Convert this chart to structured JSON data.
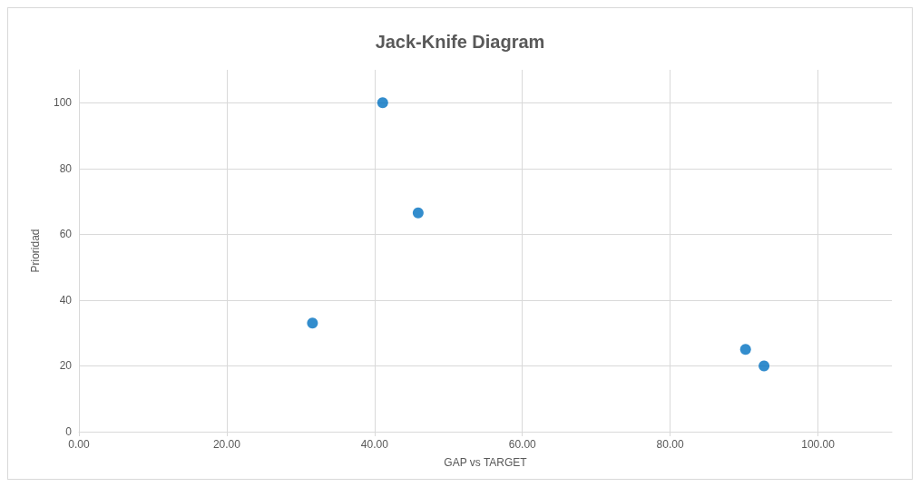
{
  "chart_data": {
    "type": "scatter",
    "title": "Jack-Knife Diagram",
    "xlabel": "GAP vs TARGET",
    "ylabel": "Prioridad",
    "x": [
      31.6,
      41.1,
      45.9,
      90.2,
      92.7
    ],
    "series": [
      {
        "color": "#0070c0",
        "values": [
          33,
          100,
          66.5,
          25,
          20
        ]
      }
    ],
    "xlim": [
      0,
      110
    ],
    "ylim": [
      0,
      110
    ],
    "xticks": [
      {
        "value": 0,
        "label": "0.00"
      },
      {
        "value": 20,
        "label": "20.00"
      },
      {
        "value": 40,
        "label": "40.00"
      },
      {
        "value": 60,
        "label": "60.00"
      },
      {
        "value": 80,
        "label": "80.00"
      },
      {
        "value": 100,
        "label": "100.00"
      }
    ],
    "yticks": [
      0,
      20,
      40,
      60,
      80,
      100
    ],
    "grid": true,
    "marker": "circle"
  }
}
